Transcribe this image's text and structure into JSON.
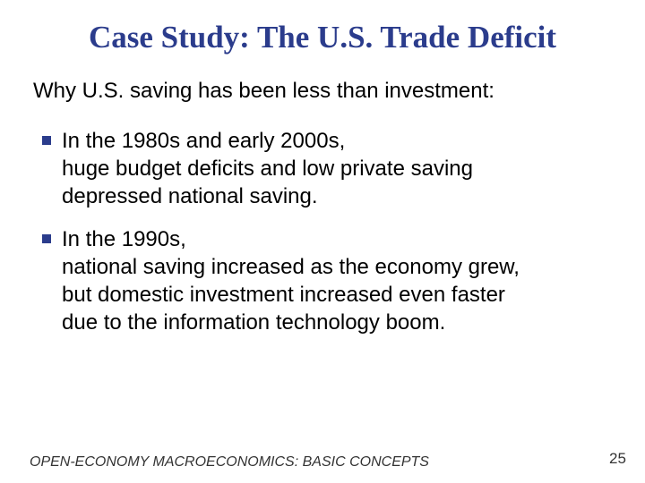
{
  "slide": {
    "title": "Case Study:  The U.S. Trade Deficit",
    "subtitle": "Why U.S. saving has been less than investment:",
    "bullets": [
      {
        "lines": [
          "In the 1980s and early 2000s,",
          "huge budget deficits and low private saving",
          "depressed national saving."
        ]
      },
      {
        "lines": [
          "In the 1990s,",
          "national saving increased as the economy grew,",
          "but domestic investment increased even faster",
          "due to the information technology boom."
        ]
      }
    ],
    "footer": "OPEN-ECONOMY MACROECONOMICS:  BASIC CONCEPTS",
    "page_number": "25",
    "colors": {
      "title": "#2B3C8C",
      "bullet_marker": "#2B3C8C"
    }
  }
}
